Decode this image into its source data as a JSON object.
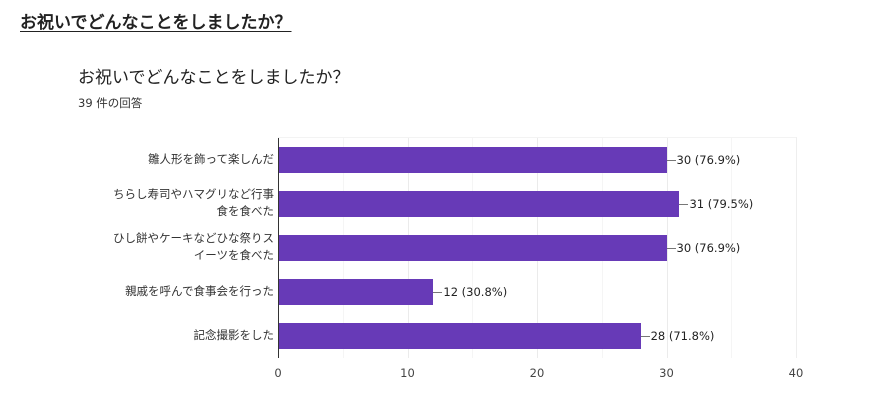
{
  "page": {
    "heading": "お祝いでどんなことをしましたか？"
  },
  "card": {
    "title": "お祝いでどんなことをしましたか？",
    "response_count": "39 件の回答"
  },
  "colors": {
    "bar": "#673ab7"
  },
  "chart_data": {
    "type": "bar",
    "orientation": "horizontal",
    "title": "お祝いでどんなことをしましたか？",
    "subtitle": "39 件の回答",
    "categories": [
      "雛人形を飾って楽しんだ",
      "ちらし寿司やハマグリなど行事食を食べた",
      "ひし餅やケーキなどひな祭りスイーツを食べた",
      "親戚を呼んで食事会を行った",
      "記念撮影をした"
    ],
    "category_lines": [
      [
        "雛人形を飾って楽しんだ"
      ],
      [
        "ちらし寿司やハマグリなど行事",
        "食を食べた"
      ],
      [
        "ひし餅やケーキなどひな祭りス",
        "イーツを食べた"
      ],
      [
        "親戚を呼んで食事会を行った"
      ],
      [
        "記念撮影をした"
      ]
    ],
    "values": [
      30,
      31,
      30,
      12,
      28
    ],
    "percentages": [
      "76.9%",
      "79.5%",
      "76.9%",
      "30.8%",
      "71.8%"
    ],
    "data_labels": [
      "30 (76.9%)",
      "31 (79.5%)",
      "30 (76.9%)",
      "12 (30.8%)",
      "28 (71.8%)"
    ],
    "xlim": [
      0,
      40
    ],
    "xticks": [
      "0",
      "10",
      "20",
      "30",
      "40"
    ],
    "xlabel": "",
    "ylabel": "",
    "grid": true,
    "legend": null
  }
}
